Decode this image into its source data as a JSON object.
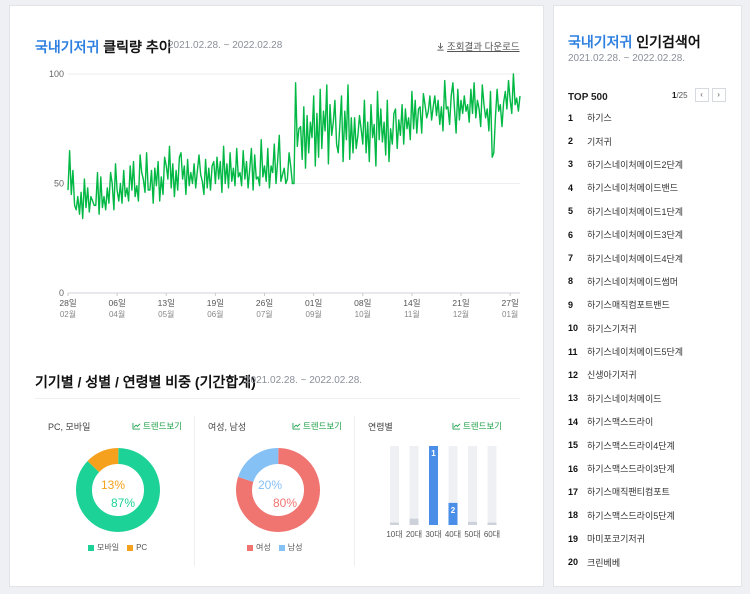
{
  "main": {
    "title_accent": "국내기저귀",
    "title_rest": "클릭량 추이",
    "date_range": "2021.02.28. ~ 2022.02.28",
    "download_label": "조회결과 다운로드"
  },
  "chart_data": [
    {
      "type": "line",
      "series": [
        {
          "color": "#00b843",
          "values": [
            47,
            65,
            45,
            56,
            40,
            38,
            44,
            36,
            46,
            34,
            52,
            39,
            48,
            37,
            44,
            42,
            40,
            40,
            55,
            36,
            53,
            39,
            44,
            38,
            48,
            41,
            55,
            50,
            38,
            59,
            47,
            42,
            50,
            41,
            56,
            44,
            48,
            42,
            58,
            47,
            60,
            44,
            49,
            42,
            63,
            55,
            52,
            46,
            64,
            47,
            47,
            56,
            41,
            57,
            49,
            60,
            42,
            53,
            45,
            62,
            58,
            52,
            67,
            48,
            59,
            44,
            56,
            47,
            62,
            64,
            52,
            58,
            45,
            61,
            49,
            55,
            50,
            59,
            48,
            56,
            63,
            54,
            51,
            45,
            61,
            48,
            57,
            47,
            58,
            60,
            50,
            62,
            52,
            60,
            46,
            67,
            50,
            59,
            48,
            64,
            51,
            57,
            49,
            66,
            53,
            55,
            49,
            65,
            52,
            60,
            48,
            57,
            66,
            47,
            63,
            52,
            53,
            49,
            70,
            53,
            58,
            51,
            66,
            48,
            58,
            55,
            68,
            50,
            60,
            72,
            51,
            54,
            57,
            50,
            52,
            64,
            58,
            50,
            50,
            96,
            67,
            75,
            76,
            61,
            85,
            57,
            81,
            64,
            78,
            71,
            90,
            58,
            82,
            62,
            93,
            66,
            83,
            74,
            95,
            59,
            86,
            72,
            78,
            88,
            68,
            64,
            77,
            90,
            60,
            83,
            70,
            95,
            61,
            80,
            64,
            80,
            66,
            72,
            81,
            75,
            68,
            88,
            64,
            78,
            60,
            86,
            71,
            77,
            58,
            92,
            70,
            84,
            69,
            78,
            63,
            88,
            60,
            75,
            68,
            82,
            84,
            66,
            79,
            72,
            86,
            68,
            84,
            75,
            80,
            70,
            92,
            75,
            88,
            73,
            84,
            85,
            73,
            91,
            86,
            80,
            83,
            90,
            79,
            85,
            90,
            81,
            88,
            77,
            85,
            74,
            97,
            84,
            85,
            77,
            90,
            96,
            84,
            73,
            93,
            79,
            88,
            82,
            90,
            83,
            86,
            78,
            93,
            82,
            96,
            80,
            88,
            84,
            76,
            95,
            86,
            80,
            84,
            74,
            92,
            62,
            64,
            80,
            93,
            83,
            86,
            76,
            87,
            92,
            84,
            97,
            88,
            82,
            100,
            86,
            89,
            83,
            90
          ]
        }
      ],
      "yticks": [
        0,
        50,
        100
      ],
      "ylim": [
        0,
        100
      ],
      "xtick_days": [
        "28일",
        "06일",
        "13일",
        "19일",
        "26일",
        "01일",
        "08일",
        "14일",
        "21일",
        "27일"
      ],
      "xtick_months": [
        "02월",
        "04월",
        "05월",
        "06월",
        "07월",
        "09월",
        "10월",
        "11월",
        "12월",
        "01월"
      ],
      "xtick_positions": [
        0,
        30,
        60,
        90,
        120,
        150,
        180,
        210,
        240,
        270
      ],
      "grid": true
    },
    {
      "type": "pie",
      "panel_title": "PC, 모바일",
      "categories": [
        "모바일",
        "PC"
      ],
      "values": [
        87,
        13
      ],
      "colors": [
        "#1dd296",
        "#f6a11d"
      ],
      "value_labels": [
        "87%",
        "13%"
      ]
    },
    {
      "type": "pie",
      "panel_title": "여성, 남성",
      "categories": [
        "여성",
        "남성"
      ],
      "values": [
        80,
        20
      ],
      "colors": [
        "#f07470",
        "#85c1f5"
      ],
      "value_labels": [
        "80%",
        "20%"
      ]
    },
    {
      "type": "bar",
      "panel_title": "연령별",
      "categories": [
        "10대",
        "20대",
        "30대",
        "40대",
        "50대",
        "60대"
      ],
      "values": [
        3,
        8,
        100,
        28,
        4,
        3
      ],
      "ranks": [
        "",
        "",
        "1",
        "2",
        "",
        ""
      ],
      "ylim": [
        0,
        100
      ]
    }
  ],
  "section2": {
    "title": "기기별 / 성별 / 연령별 비중 (기간합계)",
    "date_range": "2021.02.28. ~ 2022.02.28.",
    "trend_label": "트렌드보기"
  },
  "sidebar": {
    "title_accent": "국내기저귀",
    "title_rest": "인기검색어",
    "date_range": "2021.02.28. ~ 2022.02.28.",
    "top_label": "TOP 500",
    "page_current": "1",
    "page_total": "/25",
    "prev_icon": "chevron-left-icon",
    "next_icon": "chevron-right-icon",
    "items": [
      {
        "rank": "1",
        "keyword": "하기스"
      },
      {
        "rank": "2",
        "keyword": "기저귀"
      },
      {
        "rank": "3",
        "keyword": "하기스네이처메이드2단계"
      },
      {
        "rank": "4",
        "keyword": "하기스네이처메이드밴드"
      },
      {
        "rank": "5",
        "keyword": "하기스네이처메이드1단계"
      },
      {
        "rank": "6",
        "keyword": "하기스네이처메이드3단계"
      },
      {
        "rank": "7",
        "keyword": "하기스네이처메이드4단계"
      },
      {
        "rank": "8",
        "keyword": "하기스네이처메이드썸머"
      },
      {
        "rank": "9",
        "keyword": "하기스매직컴포트밴드"
      },
      {
        "rank": "10",
        "keyword": "하기스기저귀"
      },
      {
        "rank": "11",
        "keyword": "하기스네이처메이드5단계"
      },
      {
        "rank": "12",
        "keyword": "신생아기저귀"
      },
      {
        "rank": "13",
        "keyword": "하기스네이처메이드"
      },
      {
        "rank": "14",
        "keyword": "하기스맥스드라이"
      },
      {
        "rank": "15",
        "keyword": "하기스맥스드라이4단계"
      },
      {
        "rank": "16",
        "keyword": "하기스맥스드라이3단계"
      },
      {
        "rank": "17",
        "keyword": "하기스매직팬티컴포트"
      },
      {
        "rank": "18",
        "keyword": "하기스맥스드라이5단계"
      },
      {
        "rank": "19",
        "keyword": "마미포코기저귀"
      },
      {
        "rank": "20",
        "keyword": "크린베베"
      }
    ]
  }
}
